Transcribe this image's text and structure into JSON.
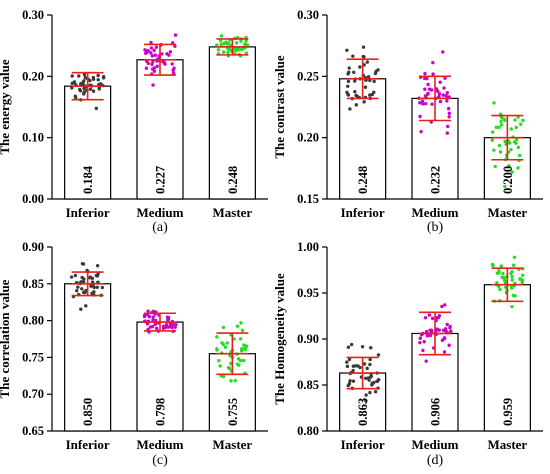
{
  "chart_data": [
    {
      "type": "bar",
      "panel_label": "(a)",
      "ylabel": "The energy value",
      "categories": [
        "Inferior",
        "Medium",
        "Master"
      ],
      "values": [
        0.184,
        0.227,
        0.248
      ],
      "value_labels": [
        "0.184",
        "0.227",
        "0.248"
      ],
      "error": [
        0.022,
        0.025,
        0.013
      ],
      "ylim": [
        0.0,
        0.3
      ],
      "yticks": [
        "0.00",
        "0.10",
        "0.20",
        "0.30"
      ],
      "point_colors": [
        "#3a3a3a",
        "#cc00cc",
        "#22dd22"
      ],
      "error_color": "#e8201a",
      "spread": [
        0.025,
        0.032,
        0.018
      ]
    },
    {
      "type": "bar",
      "panel_label": "(b)",
      "ylabel": "The contrast value",
      "categories": [
        "Inferior",
        "Medium",
        "Master"
      ],
      "values": [
        0.248,
        0.232,
        0.2
      ],
      "value_labels": [
        "0.248",
        "0.232",
        "0.200"
      ],
      "error": [
        0.016,
        0.018,
        0.018
      ],
      "ylim": [
        0.15,
        0.3
      ],
      "yticks": [
        "0.15",
        "0.20",
        "0.25",
        "0.30"
      ],
      "point_colors": [
        "#3a3a3a",
        "#cc00cc",
        "#22dd22"
      ],
      "error_color": "#e8201a",
      "spread": [
        0.02,
        0.028,
        0.025
      ]
    },
    {
      "type": "bar",
      "panel_label": "(c)",
      "ylabel": "The correlation value",
      "categories": [
        "Inferior",
        "Medium",
        "Master"
      ],
      "values": [
        0.85,
        0.798,
        0.755
      ],
      "value_labels": [
        "0.850",
        "0.798",
        "0.755"
      ],
      "error": [
        0.016,
        0.012,
        0.028
      ],
      "ylim": [
        0.65,
        0.9
      ],
      "yticks": [
        "0.65",
        "0.70",
        "0.75",
        "0.80",
        "0.85",
        "0.90"
      ],
      "point_colors": [
        "#3a3a3a",
        "#cc00cc",
        "#22dd22"
      ],
      "error_color": "#e8201a",
      "spread": [
        0.024,
        0.016,
        0.036
      ]
    },
    {
      "type": "bar",
      "panel_label": "(d)",
      "ylabel": "The Homogeneity value",
      "categories": [
        "Inferior",
        "Medium",
        "Master"
      ],
      "values": [
        0.863,
        0.906,
        0.959
      ],
      "value_labels": [
        "0.863",
        "0.906",
        "0.959"
      ],
      "error": [
        0.017,
        0.023,
        0.018
      ],
      "ylim": [
        0.8,
        1.0
      ],
      "yticks": [
        "0.80",
        "0.85",
        "0.90",
        "0.95",
        "1.00"
      ],
      "point_colors": [
        "#3a3a3a",
        "#cc00cc",
        "#22dd22"
      ],
      "error_color": "#e8201a",
      "spread": [
        0.024,
        0.03,
        0.022
      ]
    }
  ]
}
